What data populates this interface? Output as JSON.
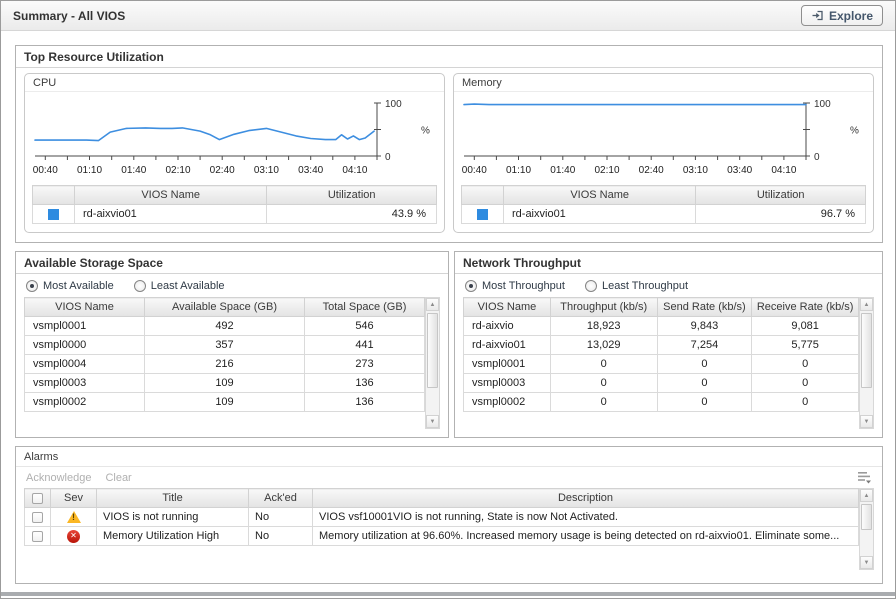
{
  "titlebar": {
    "title": "Summary - All VIOS",
    "explore_label": "Explore"
  },
  "top_resource": {
    "title": "Top Resource Utilization",
    "cpu": {
      "title": "CPU",
      "legend_color": "#2e8be0",
      "table": {
        "name_header": "VIOS Name",
        "value_header": "Utilization",
        "rows": [
          {
            "name": "rd-aixvio01",
            "value": "43.9 %"
          }
        ]
      }
    },
    "memory": {
      "title": "Memory",
      "legend_color": "#2e8be0",
      "table": {
        "name_header": "VIOS Name",
        "value_header": "Utilization",
        "rows": [
          {
            "name": "rd-aixvio01",
            "value": "96.7 %"
          }
        ]
      }
    }
  },
  "chart_data": [
    {
      "type": "line",
      "title": "CPU utilization over time",
      "ylabel": "%",
      "ylim": [
        0,
        100
      ],
      "x_tick_labels": [
        "00:40",
        "01:10",
        "01:40",
        "02:10",
        "02:40",
        "03:10",
        "03:40",
        "04:10"
      ],
      "x_label_minutes": [
        40,
        70,
        100,
        130,
        160,
        190,
        220,
        250
      ],
      "x_range_minutes": [
        33,
        265
      ],
      "minor_tick_step": 15,
      "grid": false,
      "legend_position": "table-below",
      "series": [
        {
          "name": "rd-aixvio01",
          "color": "#3d8ee0",
          "points": [
            [
              33,
              30
            ],
            [
              68,
              30
            ],
            [
              76,
              29
            ],
            [
              84,
              45
            ],
            [
              95,
              52
            ],
            [
              108,
              53
            ],
            [
              118,
              52
            ],
            [
              126,
              52
            ],
            [
              133,
              53
            ],
            [
              145,
              47
            ],
            [
              152,
              40
            ],
            [
              158,
              31
            ],
            [
              168,
              41
            ],
            [
              178,
              48
            ],
            [
              190,
              52
            ],
            [
              200,
              45
            ],
            [
              210,
              38
            ],
            [
              220,
              33
            ],
            [
              230,
              31
            ],
            [
              237,
              31
            ],
            [
              241,
              40
            ],
            [
              245,
              32
            ],
            [
              249,
              38
            ],
            [
              253,
              31
            ],
            [
              257,
              34
            ],
            [
              263,
              47
            ]
          ]
        }
      ]
    },
    {
      "type": "line",
      "title": "Memory utilization over time",
      "ylabel": "%",
      "ylim": [
        0,
        100
      ],
      "x_tick_labels": [
        "00:40",
        "01:10",
        "01:40",
        "02:10",
        "02:40",
        "03:10",
        "03:40",
        "04:10"
      ],
      "x_label_minutes": [
        40,
        70,
        100,
        130,
        160,
        190,
        220,
        250
      ],
      "x_range_minutes": [
        33,
        265
      ],
      "minor_tick_step": 15,
      "grid": false,
      "legend_position": "table-below",
      "series": [
        {
          "name": "rd-aixvio01",
          "color": "#3d8ee0",
          "points": [
            [
              33,
              97
            ],
            [
              40,
              98
            ],
            [
              50,
              97
            ],
            [
              265,
              97
            ]
          ]
        }
      ]
    }
  ],
  "storage": {
    "title": "Available Storage Space",
    "radio_most": "Most Available",
    "radio_least": "Least Available",
    "selected": "most",
    "headers": [
      "VIOS Name",
      "Available Space (GB)",
      "Total Space (GB)"
    ],
    "rows": [
      [
        "vsmpl0001",
        "492",
        "546"
      ],
      [
        "vsmpl0000",
        "357",
        "441"
      ],
      [
        "vsmpl0004",
        "216",
        "273"
      ],
      [
        "vsmpl0003",
        "109",
        "136"
      ],
      [
        "vsmpl0002",
        "109",
        "136"
      ]
    ]
  },
  "network": {
    "title": "Network Throughput",
    "radio_most": "Most Throughput",
    "radio_least": "Least Throughput",
    "selected": "most",
    "headers": [
      "VIOS Name",
      "Throughput (kb/s)",
      "Send Rate (kb/s)",
      "Receive Rate (kb/s)"
    ],
    "rows": [
      [
        "rd-aixvio",
        "18,923",
        "9,843",
        "9,081"
      ],
      [
        "rd-aixvio01",
        "13,029",
        "7,254",
        "5,775"
      ],
      [
        "vsmpl0001",
        "0",
        "0",
        "0"
      ],
      [
        "vsmpl0003",
        "0",
        "0",
        "0"
      ],
      [
        "vsmpl0002",
        "0",
        "0",
        "0"
      ]
    ]
  },
  "alarms": {
    "title": "Alarms",
    "toolbar": {
      "acknowledge": "Acknowledge",
      "clear": "Clear"
    },
    "headers": {
      "sev": "Sev",
      "title": "Title",
      "acked": "Ack'ed",
      "description": "Description"
    },
    "rows": [
      {
        "sev": "warning",
        "title": "VIOS is not running",
        "acked": "No",
        "description": "VIOS vsf10001VIO is not running, State is now Not Activated."
      },
      {
        "sev": "error",
        "title": "Memory Utilization High",
        "acked": "No",
        "description": "Memory utilization at 96.60%. Increased memory usage is being detected on rd-aixvio01. Eliminate some..."
      }
    ]
  }
}
